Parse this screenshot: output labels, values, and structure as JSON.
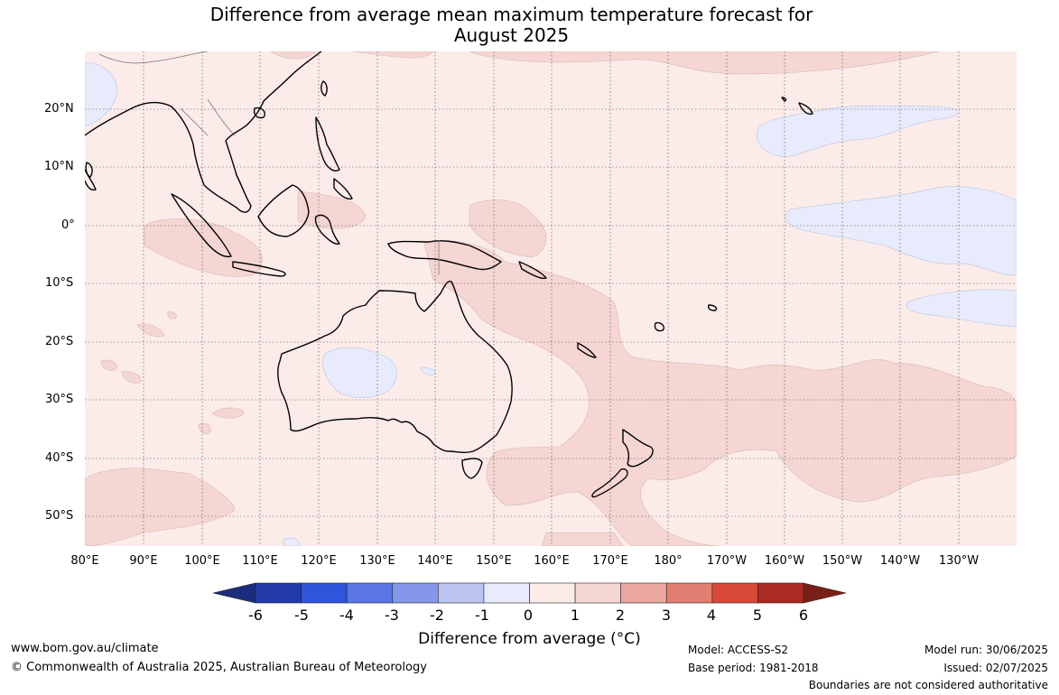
{
  "title_line1": "Difference from average mean maximum temperature forecast for",
  "title_line2": "August 2025",
  "lat_labels": [
    "20°N",
    "10°N",
    "0°",
    "10°S",
    "20°S",
    "30°S",
    "40°S",
    "50°S"
  ],
  "lon_labels": [
    "80°E",
    "90°E",
    "100°E",
    "110°E",
    "120°E",
    "130°E",
    "140°E",
    "150°E",
    "160°E",
    "170°E",
    "180°",
    "170°W",
    "160°W",
    "150°W",
    "140°W",
    "130°W"
  ],
  "colorbar": {
    "ticks": [
      "-6",
      "-5",
      "-4",
      "-3",
      "-2",
      "-1",
      "0",
      "1",
      "2",
      "3",
      "4",
      "5",
      "6"
    ],
    "colors": [
      "#233ba9",
      "#2f55db",
      "#5b77e3",
      "#8497e9",
      "#bcc6f1",
      "#e8ebfb",
      "#fbecea",
      "#f5d6d3",
      "#eba89f",
      "#e27f73",
      "#d84838",
      "#a92b22"
    ],
    "low_extend_color": "#1b2d80",
    "high_extend_color": "#7a1f17",
    "label": "Difference from average (°C)"
  },
  "footer": {
    "website": "www.bom.gov.au/climate",
    "copyright": "© Commonwealth of Australia 2025, Australian Bureau of Meteorology",
    "model": "Model: ACCESS-S2",
    "base_period": "Base period: 1981-2018",
    "model_run": "Model run: 30/06/2025",
    "issued": "Issued: 02/07/2025",
    "disclaimer": "Boundaries are not considered authoritative"
  },
  "map_colors": {
    "background": "#fbecea",
    "anomaly_1_2": "#f5d6d3",
    "anomaly_neg": "#e8ebfb",
    "coast": "#000000",
    "grid": "#555555"
  }
}
